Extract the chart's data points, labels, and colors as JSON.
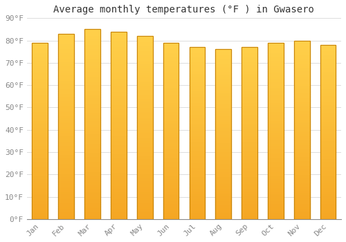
{
  "title": "Average monthly temperatures (°F ) in Gwasero",
  "months": [
    "Jan",
    "Feb",
    "Mar",
    "Apr",
    "May",
    "Jun",
    "Jul",
    "Aug",
    "Sep",
    "Oct",
    "Nov",
    "Dec"
  ],
  "values": [
    79,
    83,
    85,
    84,
    82,
    79,
    77,
    76,
    77,
    79,
    80,
    78
  ],
  "bar_color_top": "#FFD04A",
  "bar_color_bottom": "#F5A623",
  "bar_edge_color": "#C8850A",
  "background_color": "#FFFFFF",
  "plot_bg_color": "#FFFFFF",
  "grid_color": "#DDDDDD",
  "ylim": [
    0,
    90
  ],
  "yticks": [
    0,
    10,
    20,
    30,
    40,
    50,
    60,
    70,
    80,
    90
  ],
  "ytick_labels": [
    "0°F",
    "10°F",
    "20°F",
    "30°F",
    "40°F",
    "50°F",
    "60°F",
    "70°F",
    "80°F",
    "90°F"
  ],
  "title_fontsize": 10,
  "tick_fontsize": 8,
  "tick_color": "#888888",
  "bar_width": 0.6
}
